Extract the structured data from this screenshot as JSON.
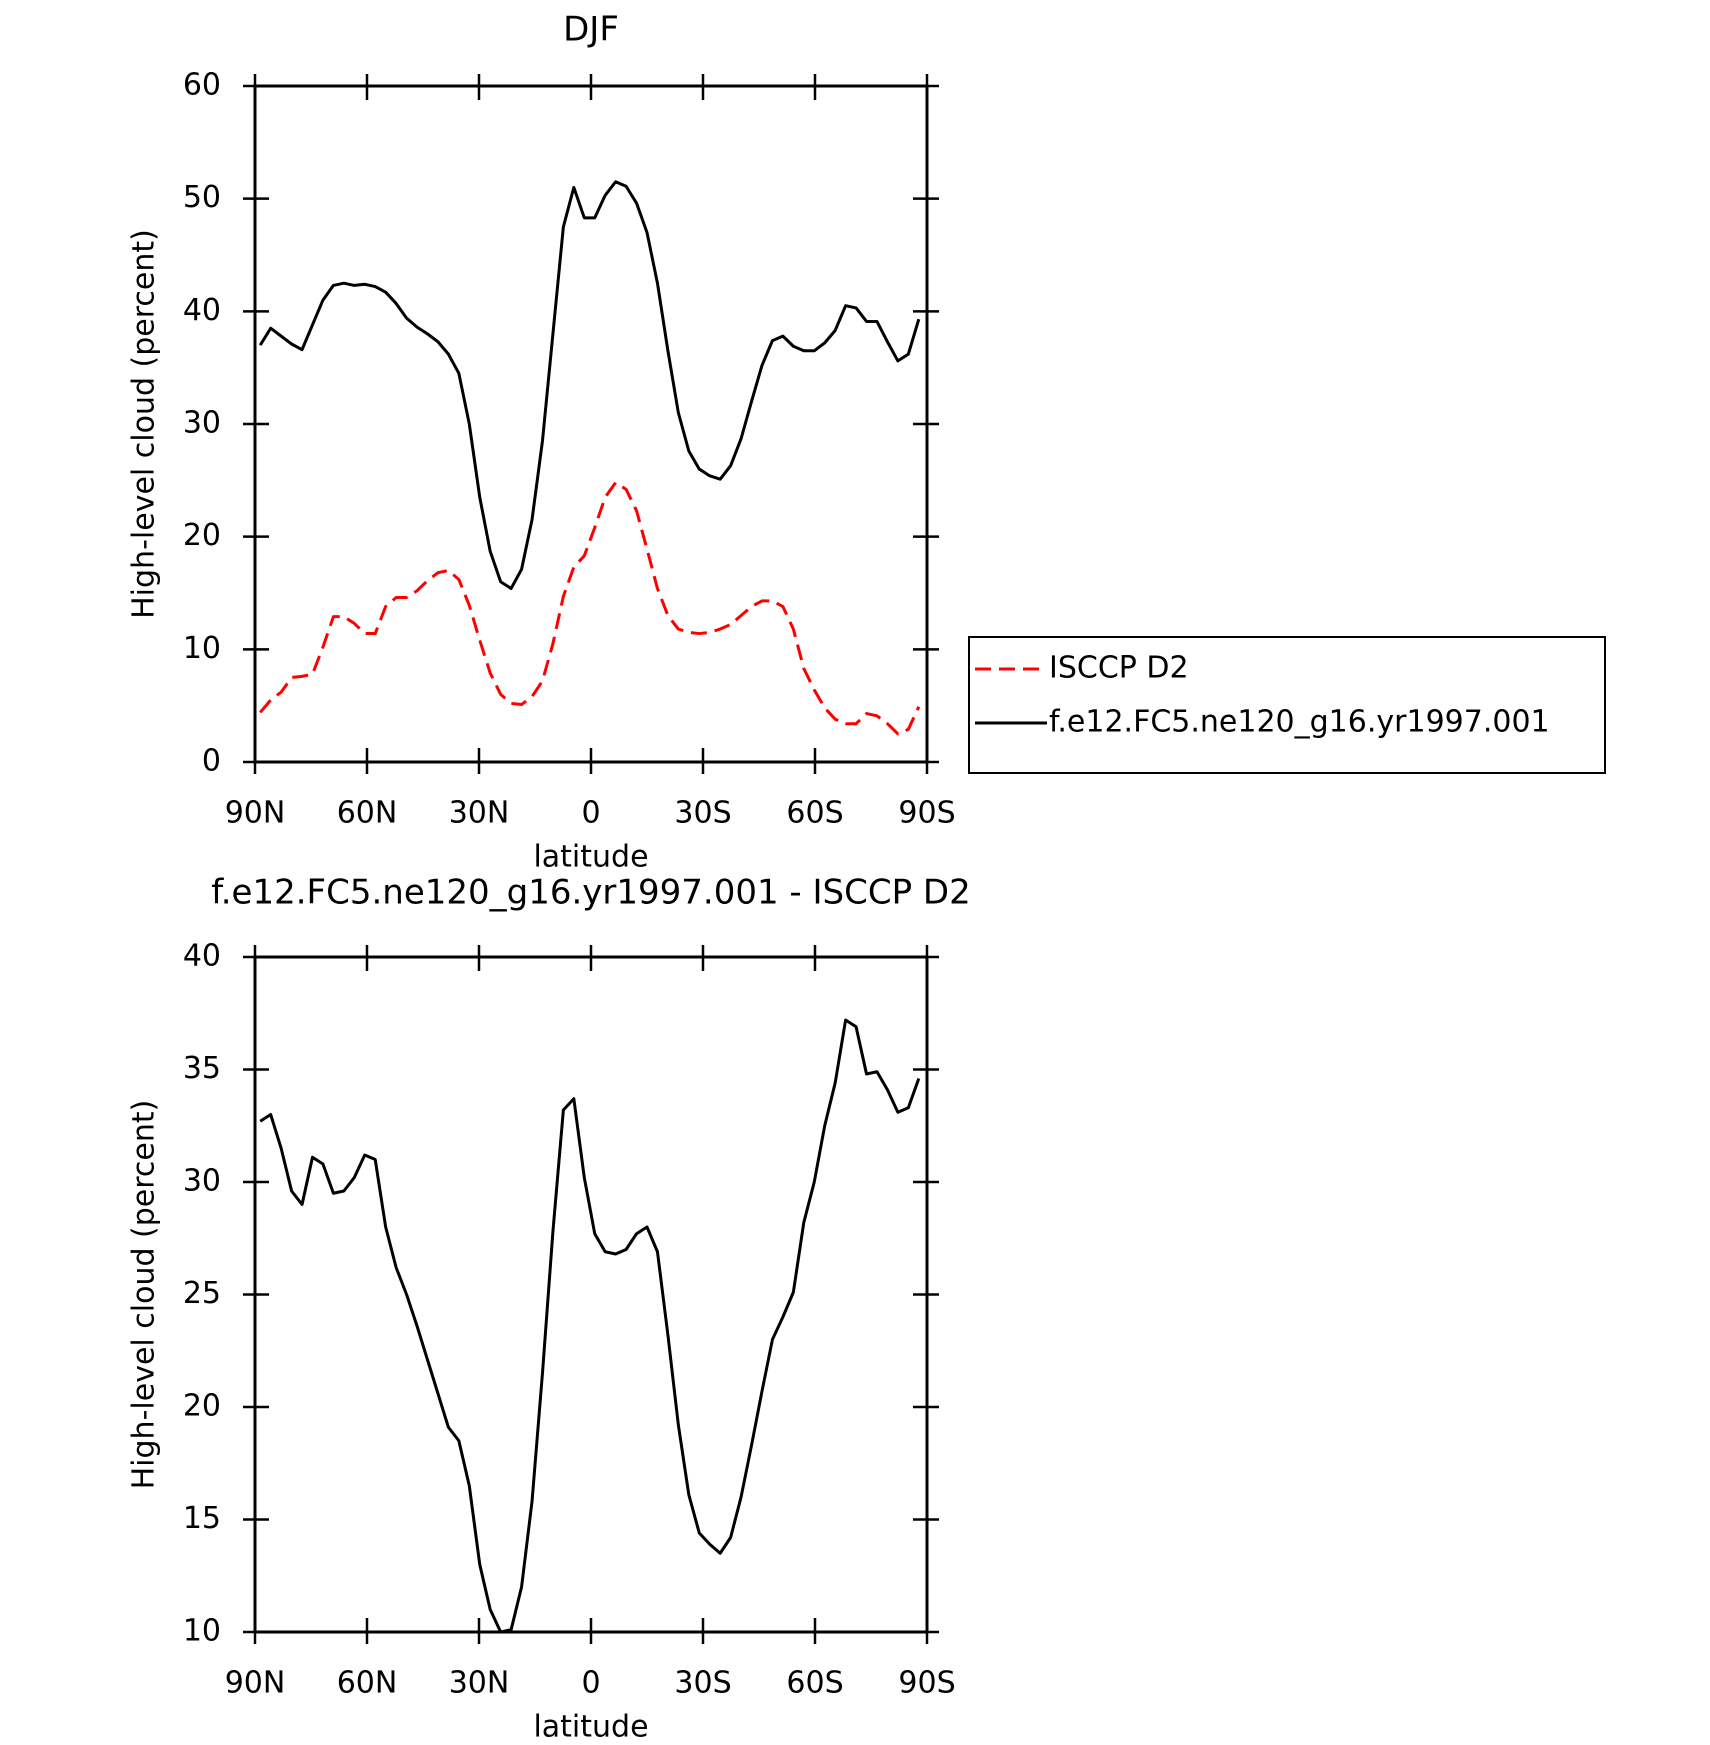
{
  "chart_data": [
    {
      "type": "line",
      "title": "DJF",
      "xlabel": "latitude",
      "ylabel": "High-level cloud (percent)",
      "xlim": [
        90,
        -90
      ],
      "xticks": [
        {
          "value": 90,
          "label": "90N"
        },
        {
          "value": 60,
          "label": "60N"
        },
        {
          "value": 30,
          "label": "30N"
        },
        0,
        {
          "value": -30,
          "label": "30S"
        },
        {
          "value": -60,
          "label": "60S"
        },
        {
          "value": -90,
          "label": "90S"
        }
      ],
      "ylim": [
        0,
        60
      ],
      "yticks": [
        0,
        10,
        20,
        30,
        40,
        50,
        60
      ],
      "legend": "right",
      "x": [
        88.6,
        85.8,
        83,
        80.2,
        77.4,
        74.6,
        71.8,
        69,
        66.2,
        63.4,
        60.6,
        57.8,
        55,
        52.2,
        49.4,
        46.6,
        43.8,
        41,
        38.2,
        35.4,
        32.6,
        29.8,
        27,
        24.2,
        21.4,
        18.6,
        15.8,
        13,
        10.2,
        7.4,
        4.6,
        1.8,
        -1,
        -3.8,
        -6.6,
        -9.4,
        -12.2,
        -15,
        -17.8,
        -20.6,
        -23.4,
        -26.2,
        -29,
        -31.8,
        -34.6,
        -37.4,
        -40.2,
        -43,
        -45.8,
        -48.6,
        -51.4,
        -54.2,
        -57,
        -59.8,
        -62.6,
        -65.4,
        -68.2,
        -71,
        -73.8,
        -76.6,
        -79.4,
        -82.2,
        -85,
        -87.8
      ],
      "series": [
        {
          "name": "ISCCP D2",
          "color": "#ff0000",
          "dash": true,
          "values": [
            4.4,
            5.5,
            6.2,
            7.5,
            7.6,
            7.8,
            10.2,
            12.9,
            12.9,
            12.3,
            11.4,
            11.4,
            13.8,
            14.6,
            14.6,
            15.2,
            16.1,
            16.8,
            17,
            16.2,
            13.9,
            10.8,
            7.9,
            6,
            5.2,
            5.1,
            5.8,
            7.2,
            10.5,
            14.7,
            17.3,
            18.3,
            20.8,
            23.5,
            24.8,
            24.2,
            22.3,
            18.9,
            15.4,
            13,
            11.8,
            11.5,
            11.4,
            11.5,
            11.8,
            12.2,
            13,
            13.8,
            14.3,
            14.3,
            13.8,
            11.8,
            8.3,
            6.4,
            4.8,
            3.8,
            3.4,
            3.4,
            4.3,
            4.1,
            3.4,
            2.5,
            2.9,
            4.9
          ]
        },
        {
          "name": "f.e12.FC5.ne120_g16.yr1997.001",
          "color": "#000000",
          "dash": false,
          "values": [
            37,
            38.5,
            37.8,
            37.1,
            36.6,
            38.8,
            41,
            42.3,
            42.5,
            42.3,
            42.4,
            42.2,
            41.7,
            40.7,
            39.4,
            38.6,
            38,
            37.3,
            36.2,
            34.5,
            30,
            23.5,
            18.7,
            16,
            15.4,
            17.1,
            21.5,
            28.5,
            38,
            47.5,
            51,
            48.3,
            48.3,
            50.3,
            51.5,
            51.1,
            49.6,
            47,
            42.5,
            36.5,
            31,
            27.6,
            26,
            25.4,
            25.1,
            26.3,
            28.7,
            32,
            35.2,
            37.4,
            37.8,
            36.9,
            36.5,
            36.5,
            37.2,
            38.3,
            40.5,
            40.3,
            39.1,
            39.1,
            37.3,
            35.6,
            36.2,
            39.3
          ]
        }
      ]
    },
    {
      "type": "line",
      "title": "f.e12.FC5.ne120_g16.yr1997.001 - ISCCP D2",
      "xlabel": "latitude",
      "ylabel": "High-level cloud (percent)",
      "xlim": [
        90,
        -90
      ],
      "xticks": [
        {
          "value": 90,
          "label": "90N"
        },
        {
          "value": 60,
          "label": "60N"
        },
        {
          "value": 30,
          "label": "30N"
        },
        0,
        {
          "value": -30,
          "label": "30S"
        },
        {
          "value": -60,
          "label": "60S"
        },
        {
          "value": -90,
          "label": "90S"
        }
      ],
      "ylim": [
        10,
        40
      ],
      "yticks": [
        10,
        15,
        20,
        25,
        30,
        35,
        40
      ],
      "x": [
        88.6,
        85.8,
        83,
        80.2,
        77.4,
        74.6,
        71.8,
        69,
        66.2,
        63.4,
        60.6,
        57.8,
        55,
        52.2,
        49.4,
        46.6,
        43.8,
        41,
        38.2,
        35.4,
        32.6,
        29.8,
        27,
        24.2,
        21.4,
        18.6,
        15.8,
        13,
        10.2,
        7.4,
        4.6,
        1.8,
        -1,
        -3.8,
        -6.6,
        -9.4,
        -12.2,
        -15,
        -17.8,
        -20.6,
        -23.4,
        -26.2,
        -29,
        -31.8,
        -34.6,
        -37.4,
        -40.2,
        -43,
        -45.8,
        -48.6,
        -51.4,
        -54.2,
        -57,
        -59.8,
        -62.6,
        -65.4,
        -68.2,
        -71,
        -73.8,
        -76.6,
        -79.4,
        -82.2,
        -85,
        -87.8
      ],
      "series": [
        {
          "color": "#000000",
          "dash": false,
          "values": [
            32.7,
            33,
            31.5,
            29.6,
            29,
            31.1,
            30.8,
            29.5,
            29.6,
            30.2,
            31.2,
            31,
            28,
            26.2,
            25,
            23.6,
            22.1,
            20.6,
            19.1,
            18.5,
            16.5,
            13,
            11,
            10,
            10.1,
            12,
            15.8,
            21.5,
            27.8,
            33.2,
            33.7,
            30.2,
            27.7,
            26.9,
            26.8,
            27,
            27.7,
            28,
            26.9,
            23.2,
            19.2,
            16.1,
            14.4,
            13.9,
            13.5,
            14.2,
            16,
            18.3,
            20.7,
            23,
            24,
            25.1,
            28.2,
            30,
            32.5,
            34.4,
            37.2,
            36.9,
            34.8,
            34.9,
            34.1,
            33.1,
            33.3,
            34.6
          ]
        }
      ]
    }
  ]
}
